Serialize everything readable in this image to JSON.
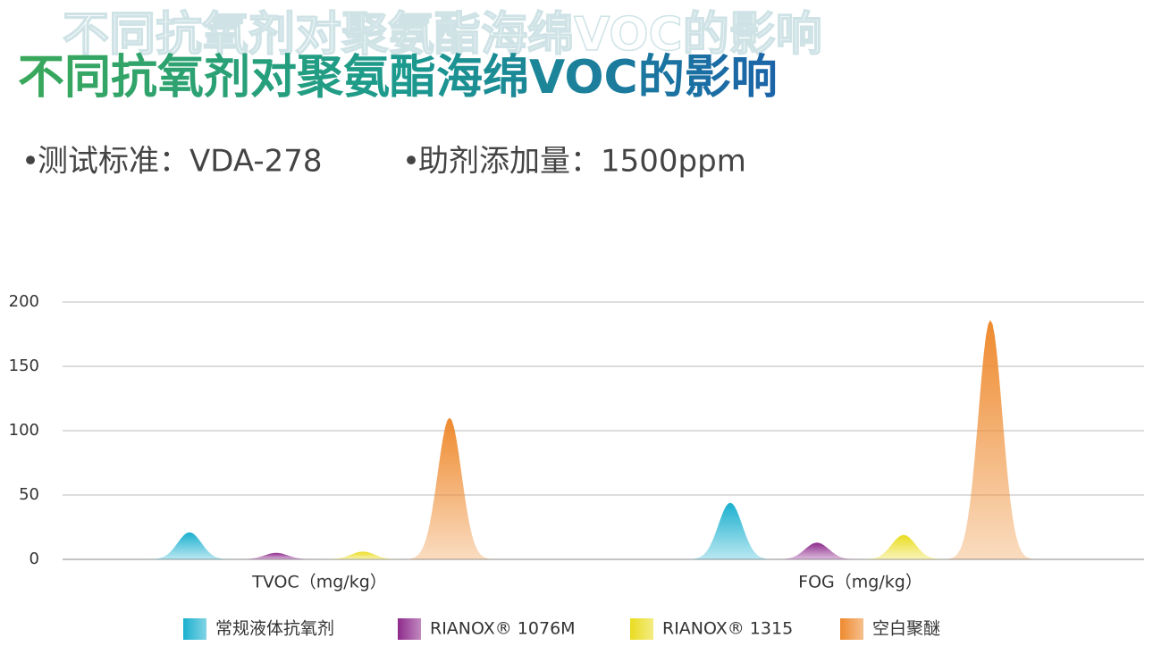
{
  "chart_data": {
    "type": "peak",
    "title": "不同抗氧剂对聚氨酯海绵VOC的影响",
    "subtitles": [
      "测试标准：VDA-278",
      "助剂添加量：1500ppm"
    ],
    "categories": [
      "TVOC（mg/kg）",
      "FOG（mg/kg）"
    ],
    "series": [
      {
        "name": "常规液体抗氧剂",
        "color": "#1ab0cf",
        "values": [
          21,
          44
        ]
      },
      {
        "name": "RIANOX® 1076M",
        "color": "#8e2a8c",
        "values": [
          5,
          13
        ]
      },
      {
        "name": "RIANOX® 1315",
        "color": "#eadc1f",
        "values": [
          6,
          19
        ]
      },
      {
        "name": "空白聚醚",
        "color": "#ee8a2e",
        "values": [
          110,
          186
        ]
      }
    ],
    "ylim": [
      0,
      200
    ],
    "yticks": [
      0,
      50,
      100,
      150,
      200
    ],
    "grid": true
  }
}
